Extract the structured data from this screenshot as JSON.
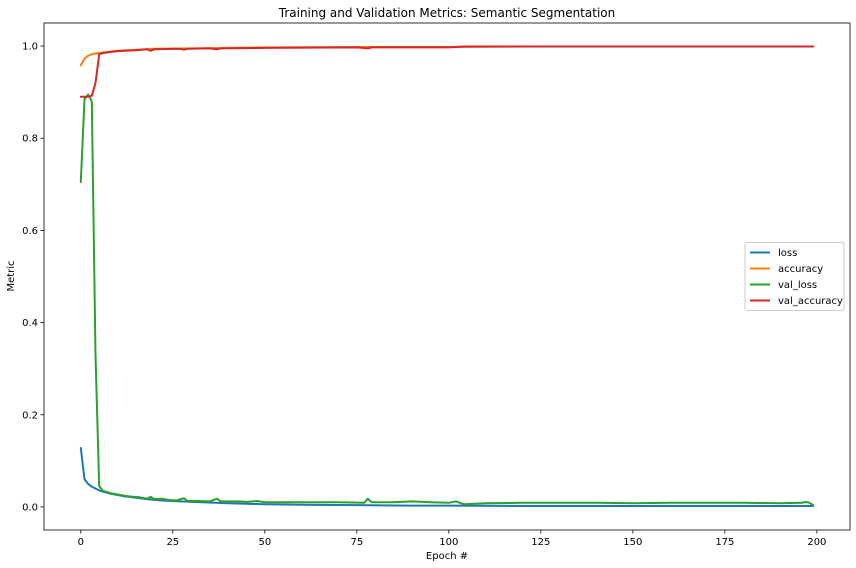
{
  "chart_data": {
    "type": "line",
    "title": "Training and Validation Metrics: Semantic Segmentation",
    "xlabel": "Epoch #",
    "ylabel": "Metric",
    "xlim": [
      -10,
      209
    ],
    "ylim": [
      -0.05,
      1.05
    ],
    "xticks": [
      0,
      25,
      50,
      75,
      100,
      125,
      150,
      175,
      200
    ],
    "yticks": [
      0.0,
      0.2,
      0.4,
      0.6,
      0.8,
      1.0
    ],
    "ytick_labels": [
      "0.0",
      "0.2",
      "0.4",
      "0.6",
      "0.8",
      "1.0"
    ],
    "grid": false,
    "legend_position": "center-right",
    "epochs": 200,
    "series": [
      {
        "name": "loss",
        "color": "#1f77b4",
        "points": [
          [
            0,
            0.128
          ],
          [
            1,
            0.06
          ],
          [
            2,
            0.05
          ],
          [
            3,
            0.044
          ],
          [
            4,
            0.04
          ],
          [
            5,
            0.036
          ],
          [
            6,
            0.033
          ],
          [
            8,
            0.029
          ],
          [
            10,
            0.026
          ],
          [
            12,
            0.023
          ],
          [
            15,
            0.02
          ],
          [
            18,
            0.017
          ],
          [
            22,
            0.014
          ],
          [
            27,
            0.012
          ],
          [
            33,
            0.01
          ],
          [
            40,
            0.008
          ],
          [
            50,
            0.006
          ],
          [
            60,
            0.005
          ],
          [
            75,
            0.004
          ],
          [
            90,
            0.003
          ],
          [
            100,
            0.003
          ],
          [
            120,
            0.002
          ],
          [
            150,
            0.002
          ],
          [
            175,
            0.002
          ],
          [
            199,
            0.002
          ]
        ]
      },
      {
        "name": "accuracy",
        "color": "#ff7f0e",
        "points": [
          [
            0,
            0.958
          ],
          [
            1,
            0.973
          ],
          [
            2,
            0.979
          ],
          [
            3,
            0.982
          ],
          [
            4,
            0.984
          ],
          [
            5,
            0.985
          ],
          [
            6,
            0.986
          ],
          [
            8,
            0.988
          ],
          [
            10,
            0.99
          ],
          [
            15,
            0.992
          ],
          [
            20,
            0.994
          ],
          [
            30,
            0.995
          ],
          [
            40,
            0.996
          ],
          [
            50,
            0.997
          ],
          [
            75,
            0.998
          ],
          [
            100,
            0.998
          ],
          [
            125,
            0.999
          ],
          [
            150,
            0.999
          ],
          [
            199,
            0.999
          ]
        ]
      },
      {
        "name": "val_loss",
        "color": "#2ca02c",
        "points": [
          [
            0,
            0.705
          ],
          [
            1,
            0.885
          ],
          [
            2,
            0.895
          ],
          [
            3,
            0.88
          ],
          [
            4,
            0.33
          ],
          [
            5,
            0.045
          ],
          [
            6,
            0.035
          ],
          [
            8,
            0.03
          ],
          [
            10,
            0.027
          ],
          [
            12,
            0.024
          ],
          [
            14,
            0.022
          ],
          [
            16,
            0.021
          ],
          [
            18,
            0.018
          ],
          [
            19,
            0.022
          ],
          [
            20,
            0.017
          ],
          [
            22,
            0.018
          ],
          [
            24,
            0.015
          ],
          [
            26,
            0.014
          ],
          [
            28,
            0.019
          ],
          [
            29,
            0.013
          ],
          [
            32,
            0.013
          ],
          [
            35,
            0.012
          ],
          [
            37,
            0.018
          ],
          [
            38,
            0.012
          ],
          [
            40,
            0.012
          ],
          [
            43,
            0.012
          ],
          [
            45,
            0.011
          ],
          [
            48,
            0.013
          ],
          [
            50,
            0.01
          ],
          [
            60,
            0.01
          ],
          [
            70,
            0.01
          ],
          [
            77,
            0.009
          ],
          [
            78,
            0.018
          ],
          [
            79,
            0.01
          ],
          [
            85,
            0.01
          ],
          [
            90,
            0.012
          ],
          [
            95,
            0.01
          ],
          [
            100,
            0.009
          ],
          [
            102,
            0.012
          ],
          [
            104,
            0.006
          ],
          [
            110,
            0.008
          ],
          [
            120,
            0.009
          ],
          [
            125,
            0.009
          ],
          [
            130,
            0.009
          ],
          [
            140,
            0.009
          ],
          [
            150,
            0.008
          ],
          [
            160,
            0.009
          ],
          [
            170,
            0.009
          ],
          [
            180,
            0.009
          ],
          [
            190,
            0.008
          ],
          [
            196,
            0.009
          ],
          [
            197,
            0.011
          ],
          [
            198,
            0.009
          ],
          [
            199,
            0.004
          ]
        ]
      },
      {
        "name": "val_accuracy",
        "color": "#d62728",
        "points": [
          [
            0,
            0.89
          ],
          [
            1,
            0.89
          ],
          [
            2,
            0.89
          ],
          [
            3,
            0.892
          ],
          [
            4,
            0.92
          ],
          [
            5,
            0.982
          ],
          [
            6,
            0.985
          ],
          [
            8,
            0.987
          ],
          [
            10,
            0.989
          ],
          [
            15,
            0.991
          ],
          [
            18,
            0.993
          ],
          [
            19,
            0.99
          ],
          [
            20,
            0.993
          ],
          [
            27,
            0.994
          ],
          [
            28,
            0.992
          ],
          [
            29,
            0.994
          ],
          [
            35,
            0.995
          ],
          [
            37,
            0.993
          ],
          [
            38,
            0.995
          ],
          [
            50,
            0.996
          ],
          [
            75,
            0.997
          ],
          [
            78,
            0.995
          ],
          [
            79,
            0.997
          ],
          [
            100,
            0.997
          ],
          [
            104,
            0.999
          ],
          [
            125,
            0.999
          ],
          [
            150,
            0.999
          ],
          [
            175,
            0.999
          ],
          [
            199,
            0.999
          ]
        ]
      }
    ]
  }
}
